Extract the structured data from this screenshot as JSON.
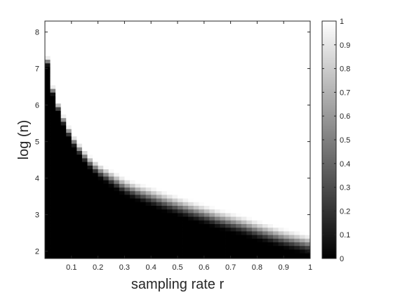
{
  "chart_data": {
    "type": "heatmap",
    "title": "",
    "xlabel": "sampling rate r",
    "ylabel": "log (n)",
    "xlim": [
      0,
      1
    ],
    "ylim": [
      1.8,
      8.3
    ],
    "x_ticks": [
      "0.1",
      "0.2",
      "0.3",
      "0.4",
      "0.5",
      "0.6",
      "0.7",
      "0.8",
      "0.9",
      "1"
    ],
    "y_ticks": [
      "2",
      "3",
      "4",
      "5",
      "6",
      "7",
      "8"
    ],
    "colorbar": {
      "colormap": "gray",
      "range": [
        0,
        1
      ],
      "ticks": [
        "0",
        "0.1",
        "0.2",
        "0.3",
        "0.4",
        "0.5",
        "0.6",
        "0.7",
        "0.8",
        "0.9",
        "1"
      ]
    },
    "grid": {
      "x_cell_width": 0.02,
      "x_first_center": 0.01,
      "y_cell_height": 0.1,
      "y_first_center": 1.8,
      "num_cols": 50,
      "num_rows": 61
    },
    "transition_boundary": {
      "description": "value is 0 below curve, rises to 1 above it",
      "r": [
        0.0,
        0.02,
        0.04,
        0.06,
        0.08,
        0.1,
        0.12,
        0.14,
        0.16,
        0.2,
        0.25,
        0.3,
        0.35,
        0.4,
        0.45,
        0.5,
        0.55,
        0.6,
        0.65,
        0.7,
        0.75,
        0.8,
        0.85,
        0.9,
        0.95,
        1.0
      ],
      "log_n": [
        7.6,
        6.5,
        6.0,
        5.6,
        5.25,
        4.95,
        4.7,
        4.5,
        4.3,
        4.0,
        3.75,
        3.5,
        3.35,
        3.2,
        3.07,
        2.95,
        2.83,
        2.72,
        2.6,
        2.5,
        2.4,
        2.28,
        2.17,
        2.06,
        1.97,
        1.88
      ],
      "transition_width_log_n": [
        0.3,
        0.3,
        0.3,
        0.3,
        0.35,
        0.35,
        0.35,
        0.4,
        0.4,
        0.45,
        0.5,
        0.55,
        0.55,
        0.6,
        0.6,
        0.6,
        0.6,
        0.6,
        0.6,
        0.6,
        0.6,
        0.6,
        0.6,
        0.6,
        0.6,
        0.6
      ]
    }
  }
}
